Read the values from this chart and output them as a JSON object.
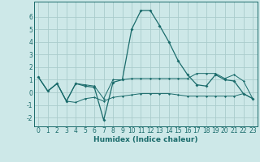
{
  "xlabel": "Humidex (Indice chaleur)",
  "background_color": "#cde8e8",
  "grid_color": "#aacccc",
  "line_color": "#1a6b6b",
  "xlim": [
    -0.5,
    23.5
  ],
  "ylim": [
    -2.7,
    7.2
  ],
  "x": [
    0,
    1,
    2,
    3,
    4,
    5,
    6,
    7,
    8,
    9,
    10,
    11,
    12,
    13,
    14,
    15,
    16,
    17,
    18,
    19,
    20,
    21,
    22,
    23
  ],
  "y_main": [
    1.2,
    0.1,
    0.7,
    -0.7,
    0.7,
    0.5,
    0.4,
    -2.2,
    0.8,
    1.0,
    5.0,
    6.5,
    6.5,
    5.3,
    4.0,
    2.5,
    1.4,
    0.6,
    0.5,
    1.4,
    1.0,
    0.9,
    -0.1,
    -0.5
  ],
  "y_upper": [
    1.2,
    0.1,
    0.7,
    -0.7,
    0.7,
    0.6,
    0.5,
    -0.5,
    1.0,
    1.0,
    1.1,
    1.1,
    1.1,
    1.1,
    1.1,
    1.1,
    1.1,
    1.5,
    1.5,
    1.5,
    1.1,
    1.4,
    0.9,
    -0.5
  ],
  "y_lower": [
    1.2,
    0.1,
    0.7,
    -0.7,
    -0.8,
    -0.5,
    -0.4,
    -0.7,
    -0.4,
    -0.3,
    -0.2,
    -0.1,
    -0.1,
    -0.1,
    -0.1,
    -0.2,
    -0.3,
    -0.3,
    -0.3,
    -0.3,
    -0.3,
    -0.3,
    -0.1,
    -0.5
  ],
  "yticks": [
    -2,
    -1,
    0,
    1,
    2,
    3,
    4,
    5,
    6
  ],
  "xticks": [
    0,
    1,
    2,
    3,
    4,
    5,
    6,
    7,
    8,
    9,
    10,
    11,
    12,
    13,
    14,
    15,
    16,
    17,
    18,
    19,
    20,
    21,
    22,
    23
  ],
  "tick_fontsize": 5.5,
  "xlabel_fontsize": 6.5,
  "marker": "D",
  "markersize_main": 2.0,
  "markersize_sub": 1.5,
  "linewidth_main": 0.9,
  "linewidth_sub": 0.7
}
